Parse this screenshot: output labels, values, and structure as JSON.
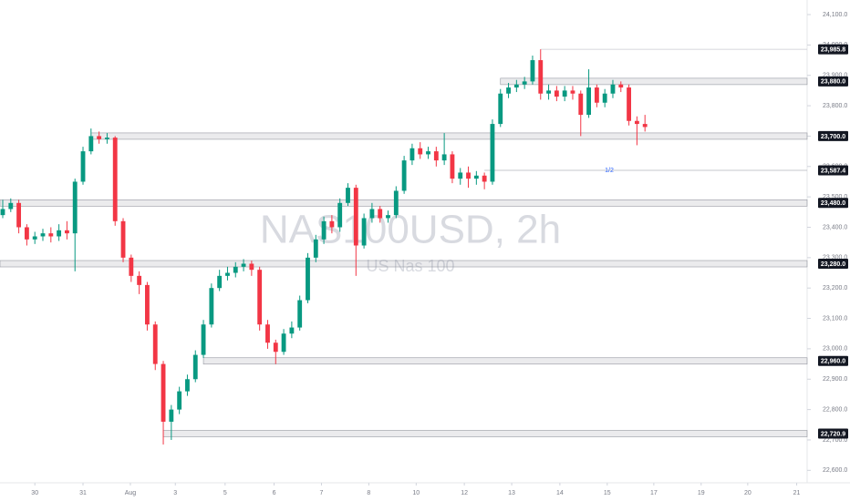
{
  "chart_data": {
    "type": "candlestick",
    "title": "NAS100USD, 2h",
    "subtitle": "US Nas 100",
    "annotation": "1/2",
    "up_color": "#089981",
    "down_color": "#f23645",
    "open": [
      23440,
      23460,
      23480,
      23400,
      23360,
      23370,
      23380,
      23370,
      23390,
      23380,
      23550,
      23650,
      23700,
      23690,
      23695,
      23420,
      23300,
      23240,
      23210,
      23080,
      22950,
      22760,
      22800,
      22860,
      22900,
      22980,
      23080,
      23200,
      23240,
      23250,
      23270,
      23280,
      23260,
      23080,
      23020,
      22990,
      23050,
      23070,
      23160,
      23300,
      23360,
      23420,
      23400,
      23480,
      23530,
      23340,
      23430,
      23460,
      23430,
      23440,
      23520,
      23620,
      23660,
      23640,
      23650,
      23620,
      23640,
      23560,
      23580,
      23560,
      23570,
      23550,
      23740,
      23840,
      23860,
      23870,
      23880,
      23950,
      23840,
      23850,
      23830,
      23850,
      23840,
      23770,
      23860,
      23810,
      23840,
      23870,
      23860,
      23750,
      23740
    ],
    "high": [
      23490,
      23495,
      23490,
      23410,
      23385,
      23395,
      23400,
      23410,
      23420,
      23560,
      23665,
      23725,
      23715,
      23710,
      23700,
      23430,
      23310,
      23255,
      23220,
      23090,
      22960,
      22815,
      22875,
      22915,
      22995,
      23095,
      23215,
      23260,
      23270,
      23285,
      23295,
      23290,
      23270,
      23095,
      23030,
      23065,
      23090,
      23175,
      23315,
      23375,
      23435,
      23440,
      23495,
      23545,
      23540,
      23445,
      23480,
      23470,
      23455,
      23535,
      23635,
      23675,
      23680,
      23665,
      23665,
      23710,
      23650,
      23595,
      23600,
      23585,
      23580,
      23755,
      23855,
      23875,
      23885,
      23895,
      23965,
      23985.8,
      23870,
      23865,
      23865,
      23865,
      23850,
      23920,
      23870,
      23855,
      23885,
      23880,
      23870,
      23765,
      23770
    ],
    "low": [
      23430,
      23450,
      23380,
      23340,
      23345,
      23355,
      23350,
      23355,
      23360,
      23255,
      23540,
      23640,
      23675,
      23675,
      23405,
      23285,
      23220,
      23180,
      23060,
      22930,
      22685,
      22700,
      22785,
      22845,
      22890,
      22970,
      23070,
      23190,
      23225,
      23235,
      23255,
      23240,
      23060,
      23000,
      22950,
      22980,
      23035,
      23060,
      23150,
      23285,
      23345,
      23380,
      23385,
      23470,
      23240,
      23330,
      23415,
      23415,
      23415,
      23430,
      23510,
      23605,
      23625,
      23625,
      23600,
      23605,
      23545,
      23540,
      23530,
      23540,
      23525,
      23540,
      23730,
      23825,
      23845,
      23855,
      23870,
      23820,
      23820,
      23815,
      23815,
      23820,
      23700,
      23760,
      23795,
      23795,
      23825,
      23845,
      23735,
      23670,
      23715
    ],
    "close": [
      23460,
      23480,
      23400,
      23360,
      23370,
      23380,
      23370,
      23390,
      23380,
      23550,
      23650,
      23700,
      23690,
      23695,
      23420,
      23300,
      23240,
      23210,
      23080,
      22950,
      22760,
      22800,
      22860,
      22900,
      22980,
      23080,
      23200,
      23240,
      23250,
      23270,
      23280,
      23260,
      23080,
      23020,
      22990,
      23050,
      23070,
      23160,
      23300,
      23360,
      23420,
      23400,
      23480,
      23530,
      23340,
      23430,
      23460,
      23430,
      23440,
      23520,
      23620,
      23660,
      23640,
      23650,
      23620,
      23640,
      23560,
      23580,
      23560,
      23570,
      23550,
      23740,
      23840,
      23860,
      23870,
      23880,
      23950,
      23840,
      23850,
      23830,
      23850,
      23840,
      23770,
      23860,
      23810,
      23840,
      23870,
      23860,
      23750,
      23740,
      23730
    ],
    "levels": [
      {
        "value": 23985.8,
        "label": "23,985.8"
      },
      {
        "value": 23880,
        "label": "23,880.0"
      },
      {
        "value": 23700,
        "label": "23,700.0"
      },
      {
        "value": 23587.4,
        "label": "23,587.4"
      },
      {
        "value": 23480,
        "label": "23,480.0"
      },
      {
        "value": 23280,
        "label": "23,280.0"
      },
      {
        "value": 22960,
        "label": "22,960.0"
      },
      {
        "value": 22720.9,
        "label": "22,720.9"
      }
    ],
    "xlim": [
      -0.34,
      100.2
    ],
    "xticks": [
      {
        "value": 4.0,
        "label": "30"
      },
      {
        "value": 10.0,
        "label": "31"
      },
      {
        "value": 15.9,
        "label": "Aug"
      },
      {
        "value": 21.5,
        "label": "3"
      },
      {
        "value": 27.7,
        "label": "5"
      },
      {
        "value": 33.8,
        "label": "6"
      },
      {
        "value": 39.7,
        "label": "7"
      },
      {
        "value": 45.6,
        "label": "8"
      },
      {
        "value": 51.5,
        "label": "10"
      },
      {
        "value": 57.5,
        "label": "12"
      },
      {
        "value": 63.4,
        "label": "13"
      },
      {
        "value": 69.4,
        "label": "14"
      },
      {
        "value": 75.3,
        "label": "15"
      },
      {
        "value": 81.1,
        "label": "17"
      },
      {
        "value": 87.0,
        "label": "19"
      },
      {
        "value": 92.8,
        "label": "20"
      },
      {
        "value": 98.9,
        "label": "21"
      }
    ],
    "ylim": [
      22544,
      24148
    ],
    "yticks": [
      {
        "value": 24100,
        "label": "24,100.0"
      },
      {
        "value": 24000,
        "label": "24,000.0"
      },
      {
        "value": 23900,
        "label": "23,900.0"
      },
      {
        "value": 23800,
        "label": "23,800.0"
      },
      {
        "value": 23700,
        "label": "23,700.0"
      },
      {
        "value": 23600,
        "label": "23,600.0"
      },
      {
        "value": 23500,
        "label": "23,500.0"
      },
      {
        "value": 23400,
        "label": "23,400.0"
      },
      {
        "value": 23300,
        "label": "23,300.0"
      },
      {
        "value": 23200,
        "label": "23,200.0"
      },
      {
        "value": 23100,
        "label": "23,100.0"
      },
      {
        "value": 23000,
        "label": "23,000.0"
      },
      {
        "value": 22900,
        "label": "22,900.0"
      },
      {
        "value": 22800,
        "label": "22,800.0"
      },
      {
        "value": 22700,
        "label": "22,700.0"
      },
      {
        "value": 22600,
        "label": "22,600.0"
      }
    ]
  }
}
